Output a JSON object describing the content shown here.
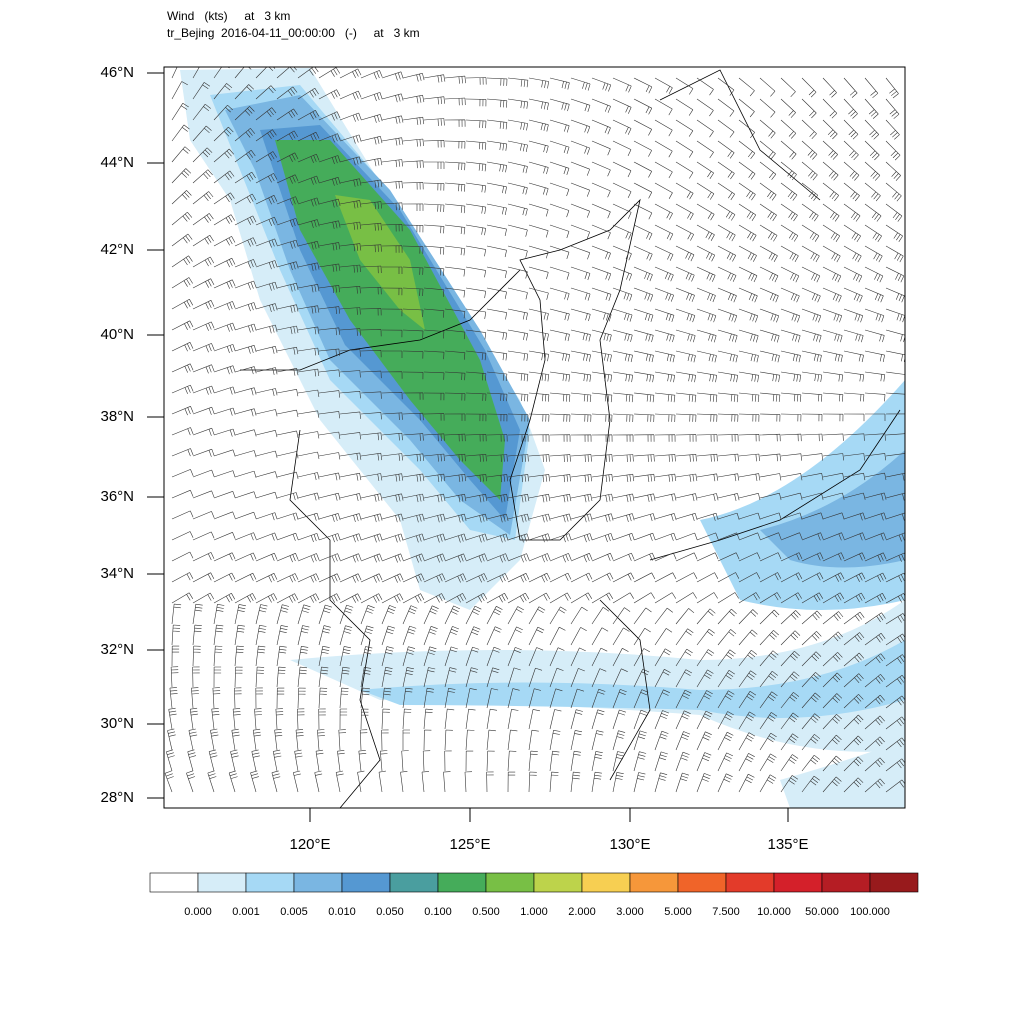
{
  "header": {
    "line1": "Wind   (kts)     at   3 km",
    "line2": "tr_Bejing  2016-04-11_00:00:00   (-)     at   3 km"
  },
  "lat_ticks": [
    "46°N",
    "44°N",
    "42°N",
    "40°N",
    "38°N",
    "36°N",
    "34°N",
    "32°N",
    "30°N",
    "28°N"
  ],
  "lon_ticks": [
    "120°E",
    "125°E",
    "130°E",
    "135°E"
  ],
  "colorbar": {
    "colors": [
      "#ffffff",
      "#d6edf8",
      "#a6d9f5",
      "#7ab6e2",
      "#5598d2",
      "#4a9e9f",
      "#45ac5a",
      "#78bf45",
      "#bdd34b",
      "#f7cf52",
      "#f6973a",
      "#f06429",
      "#e33b2a",
      "#d4202a",
      "#b51d24",
      "#981a1c"
    ],
    "labels": [
      "0.000",
      "0.001",
      "0.005",
      "0.010",
      "0.050",
      "0.100",
      "0.500",
      "1.000",
      "2.000",
      "3.000",
      "5.000",
      "7.500",
      "10.000",
      "50.000",
      "100.000"
    ]
  }
}
